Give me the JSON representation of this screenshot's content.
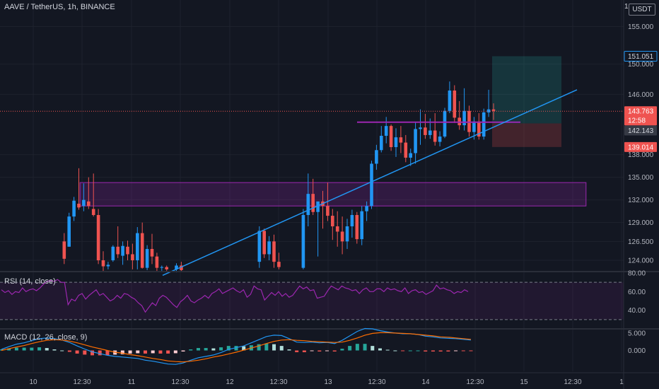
{
  "header": {
    "symbol_title": "AAVE / TetherUS, 1h, BINANCE",
    "currency_label": "USDT",
    "currency_prefix": "1"
  },
  "colors": {
    "background": "#131722",
    "grid": "#1e222d",
    "up_candle": "#2196f3",
    "down_candle": "#ef5350",
    "trendline": "#2196f3",
    "zone": "#9c27b0",
    "rsi_line": "#9c27b0",
    "macd_line": "#2196f3",
    "signal_line": "#ff6d00",
    "target_zone": "#26a69a",
    "stop_zone": "#ef5350"
  },
  "chart_data": [
    {
      "type": "candlestick",
      "pane": "price",
      "yticks": [
        "155.000",
        "150.000",
        "146.000",
        "138.000",
        "135.000",
        "132.000",
        "129.000",
        "126.500",
        "124.000"
      ],
      "ylim": [
        122.5,
        158.5
      ],
      "xticks": [
        "10",
        "12:30",
        "11",
        "12:30",
        "12",
        "12:30",
        "13",
        "12:30",
        "14",
        "12:30",
        "15",
        "12:30",
        "1"
      ],
      "price_labels": [
        "151.051",
        "143.763",
        "12:58",
        "142.143",
        "139.014"
      ],
      "trendline": {
        "start": [
          0,
          122
        ],
        "end": [
          116,
          146.6
        ]
      },
      "horizontal_zones": [
        {
          "low": 131.2,
          "high": 134.3,
          "from": 8,
          "to": 112
        }
      ],
      "long_position": {
        "entry": 142.143,
        "target": 151.051,
        "stop": 139.014
      },
      "series": [
        {
          "points": [
            [
              12,
              126.5,
              127.6,
              123.5,
              124.2
            ],
            [
              13,
              125.8,
              130.3,
              125.8,
              129.8
            ],
            [
              14,
              129.8,
              132.4,
              129.2,
              131.9
            ],
            [
              15,
              131.5,
              136.2,
              130.7,
              131.0
            ],
            [
              16,
              131.2,
              134.2,
              130.5,
              132.0
            ],
            [
              17,
              131.8,
              135.0,
              130.8,
              131.2
            ],
            [
              18,
              130.8,
              135.5,
              129.8,
              130.0
            ],
            [
              19,
              130.0,
              130.8,
              123.5,
              124.0
            ],
            [
              20,
              124.0,
              125.2,
              122.5,
              123.2
            ],
            [
              21,
              123.2,
              123.8,
              122.8,
              123.4
            ],
            [
              22,
              124.0,
              126.0,
              123.8,
              125.8
            ],
            [
              23,
              125.8,
              128.5,
              124.3,
              124.8
            ],
            [
              24,
              124.6,
              126.5,
              123.4,
              125.9
            ],
            [
              25,
              125.8,
              126.6,
              124.0,
              124.8
            ],
            [
              26,
              124.8,
              126.2,
              122.8,
              124.0
            ],
            [
              27,
              124.0,
              128.4,
              122.8,
              127.6
            ],
            [
              28,
              127.6,
              129.0,
              122.9,
              123.0
            ],
            [
              29,
              123.0,
              126.0,
              122.7,
              125.5
            ],
            [
              30,
              125.5,
              127.5,
              123.5,
              124.5
            ],
            [
              31,
              124.5,
              125.0,
              122.5,
              123.0
            ],
            [
              32,
              123.0,
              123.3,
              122.6,
              123.1
            ],
            [
              33,
              123.1,
              123.3,
              122.6,
              122.8
            ],
            [
              35,
              122.8,
              123.6,
              122.4,
              123.3
            ],
            [
              36,
              123.3,
              123.8,
              122.5,
              122.7
            ],
            [
              52,
              123.8,
              128.5,
              123.0,
              127.9
            ],
            [
              53,
              127.9,
              128.2,
              124.3,
              124.8
            ],
            [
              54,
              124.8,
              127.2,
              124.0,
              126.5
            ],
            [
              55,
              126.5,
              127.4,
              123.0,
              123.8
            ],
            [
              56,
              123.8,
              125.0,
              122.8,
              123.1
            ],
            [
              61,
              123.0,
              130.8,
              122.8,
              130.0
            ],
            [
              62,
              130.0,
              135.5,
              128.5,
              132.8
            ],
            [
              63,
              132.8,
              134.8,
              130.0,
              130.4
            ],
            [
              64,
              130.4,
              131.5,
              124.5,
              131.8
            ],
            [
              65,
              131.8,
              133.2,
              128.2,
              131.2
            ],
            [
              66,
              131.2,
              134.3,
              129.2,
              129.9
            ],
            [
              67,
              129.9,
              130.8,
              126.7,
              128.5
            ],
            [
              68,
              128.5,
              130.5,
              125.8,
              127.8
            ],
            [
              69,
              127.8,
              129.8,
              124.8,
              126.5
            ],
            [
              70,
              126.5,
              129.5,
              125.5,
              128.5
            ],
            [
              71,
              128.5,
              130.7,
              127.0,
              130.0
            ],
            [
              72,
              130.0,
              130.4,
              126.2,
              126.8
            ],
            [
              73,
              126.8,
              131.2,
              126.0,
              130.5
            ],
            [
              74,
              130.5,
              131.8,
              129.2,
              131.2
            ],
            [
              75,
              131.2,
              137.2,
              130.8,
              136.8
            ],
            [
              76,
              136.8,
              139.3,
              136.0,
              138.6
            ],
            [
              77,
              138.6,
              141.8,
              138.3,
              140.5
            ],
            [
              78,
              140.5,
              143.0,
              139.5,
              141.8
            ],
            [
              79,
              141.8,
              142.0,
              138.5,
              139.0
            ],
            [
              80,
              139.0,
              141.5,
              137.7,
              140.3
            ],
            [
              81,
              140.3,
              141.8,
              138.2,
              139.6
            ],
            [
              82,
              139.6,
              140.6,
              137.0,
              137.6
            ],
            [
              83,
              137.6,
              138.8,
              136.5,
              138.2
            ],
            [
              84,
              138.2,
              142.3,
              136.8,
              141.4
            ],
            [
              85,
              141.4,
              144.0,
              139.3,
              141.6
            ],
            [
              86,
              141.6,
              143.4,
              140.1,
              140.6
            ],
            [
              87,
              140.6,
              142.8,
              140.1,
              141.2
            ],
            [
              88,
              141.2,
              143.5,
              139.2,
              139.7
            ],
            [
              89,
              139.7,
              141.1,
              139.1,
              140.4
            ],
            [
              90,
              140.4,
              144.2,
              140.2,
              143.8
            ],
            [
              91,
              143.8,
              147.7,
              143.5,
              146.5
            ],
            [
              92,
              146.5,
              147.2,
              142.2,
              142.9
            ],
            [
              93,
              142.9,
              145.1,
              141.3,
              141.9
            ],
            [
              94,
              141.9,
              146.8,
              141.2,
              143.8
            ],
            [
              95,
              143.8,
              144.5,
              140.4,
              141.0
            ],
            [
              96,
              141.0,
              143.0,
              140.0,
              142.4
            ],
            [
              97,
              142.4,
              143.5,
              140.0,
              140.4
            ],
            [
              98,
              140.4,
              144.1,
              140.0,
              143.6
            ],
            [
              99,
              143.6,
              146.6,
              143.0,
              144.0
            ],
            [
              100,
              144.0,
              144.8,
              142.6,
              143.8
            ]
          ]
        }
      ]
    },
    {
      "type": "line",
      "pane": "rsi",
      "legend": "RSI (14, close)",
      "yticks": [
        "80.00",
        "60.00",
        "40.00"
      ],
      "ylim": [
        20,
        80
      ],
      "bands": [
        30,
        70
      ],
      "series": [
        {
          "values": [
            62,
            59,
            61,
            57,
            60,
            59,
            64,
            60,
            62,
            63,
            61,
            64,
            68,
            71,
            72,
            71,
            73,
            70,
            70,
            46,
            52,
            50,
            56,
            58,
            52,
            56,
            59,
            62,
            56,
            58,
            54,
            50,
            52,
            56,
            53,
            58,
            57,
            54,
            52,
            48,
            45,
            38,
            43,
            48,
            45,
            53,
            56,
            54,
            50,
            46,
            43,
            49,
            52,
            56,
            50,
            48,
            51,
            53,
            56,
            53,
            58,
            60,
            63,
            58,
            60,
            62,
            64,
            61,
            59,
            62,
            54,
            57,
            66,
            63,
            62,
            51,
            55,
            59,
            56,
            60,
            55,
            58,
            54,
            56,
            61,
            66,
            63,
            65,
            61,
            62,
            53,
            54,
            55,
            61,
            66,
            64,
            62,
            66,
            64,
            63,
            61,
            62,
            58,
            62,
            64,
            60,
            60,
            63,
            63,
            60,
            64,
            62,
            63,
            61,
            60,
            64,
            58,
            61,
            62,
            59,
            60,
            57,
            59,
            61,
            67,
            63,
            64,
            62,
            61,
            58,
            60,
            59,
            62,
            60
          ]
        }
      ]
    },
    {
      "type": "line",
      "pane": "macd",
      "legend": "MACD (12, 26, close, 9)",
      "yticks": [
        "5.000",
        "0.000"
      ],
      "ylim": [
        -6,
        6
      ],
      "series": [
        {
          "values": [
            0.3,
            1.1,
            1.8,
            2.2,
            2.8,
            3.4,
            3.6,
            3.4,
            3.0,
            2.3,
            1.3,
            0.4,
            -0.4,
            -0.9,
            -1.4,
            -1.7,
            -1.9,
            -2.1,
            -2.3,
            -2.8,
            -3.1,
            -3.5,
            -3.9,
            -4.0,
            -3.6,
            -2.8,
            -2.1,
            -1.7,
            -1.3,
            -0.6,
            0.3,
            0.8,
            1.3,
            2.2,
            3.1,
            4.0,
            4.4,
            4.3,
            3.4,
            2.4,
            2.3,
            2.4,
            2.2,
            2.3,
            2.0,
            2.9,
            4.2,
            5.5,
            6.3,
            6.2,
            5.7,
            5.3,
            5.0,
            4.8,
            4.8,
            4.6,
            4.1,
            3.9,
            3.6,
            3.5,
            3.4,
            3.2,
            3.0
          ]
        },
        {
          "values": [
            0.0,
            0.5,
            1.0,
            1.4,
            2.0,
            2.5,
            2.9,
            3.1,
            3.0,
            2.7,
            2.2,
            1.6,
            1.0,
            0.5,
            0.0,
            -0.5,
            -0.8,
            -1.2,
            -1.5,
            -1.9,
            -2.3,
            -2.6,
            -3.0,
            -3.2,
            -3.3,
            -3.1,
            -2.8,
            -2.4,
            -1.9,
            -1.5,
            -1.0,
            -0.5,
            0.1,
            0.7,
            1.3,
            2.0,
            2.6,
            3.0,
            3.1,
            2.9,
            2.8,
            2.6,
            2.5,
            2.4,
            2.3,
            2.4,
            2.9,
            3.6,
            4.4,
            4.9,
            5.1,
            5.1,
            5.0,
            4.9,
            4.8,
            4.6,
            4.4,
            4.2,
            3.9,
            3.8,
            3.6,
            3.4,
            3.2
          ]
        }
      ],
      "histogram": [
        0.3,
        0.6,
        0.8,
        0.8,
        0.8,
        0.9,
        0.7,
        0.3,
        0.0,
        -0.4,
        -0.9,
        -1.2,
        -1.4,
        -1.4,
        -1.4,
        -1.2,
        -1.1,
        -0.9,
        -0.8,
        -0.9,
        -0.8,
        -0.9,
        -0.9,
        -0.8,
        -0.3,
        0.3,
        0.7,
        0.7,
        0.6,
        0.9,
        1.3,
        1.3,
        1.2,
        1.5,
        1.8,
        2.0,
        1.8,
        1.3,
        0.3,
        -0.5,
        -0.5,
        -0.2,
        -0.3,
        -0.1,
        -0.3,
        0.5,
        1.3,
        1.9,
        1.9,
        1.3,
        0.6,
        0.2,
        0.0,
        -0.1,
        0.0,
        0.0,
        -0.3,
        -0.3,
        -0.3,
        -0.3,
        -0.2,
        -0.2,
        -0.2
      ]
    }
  ]
}
